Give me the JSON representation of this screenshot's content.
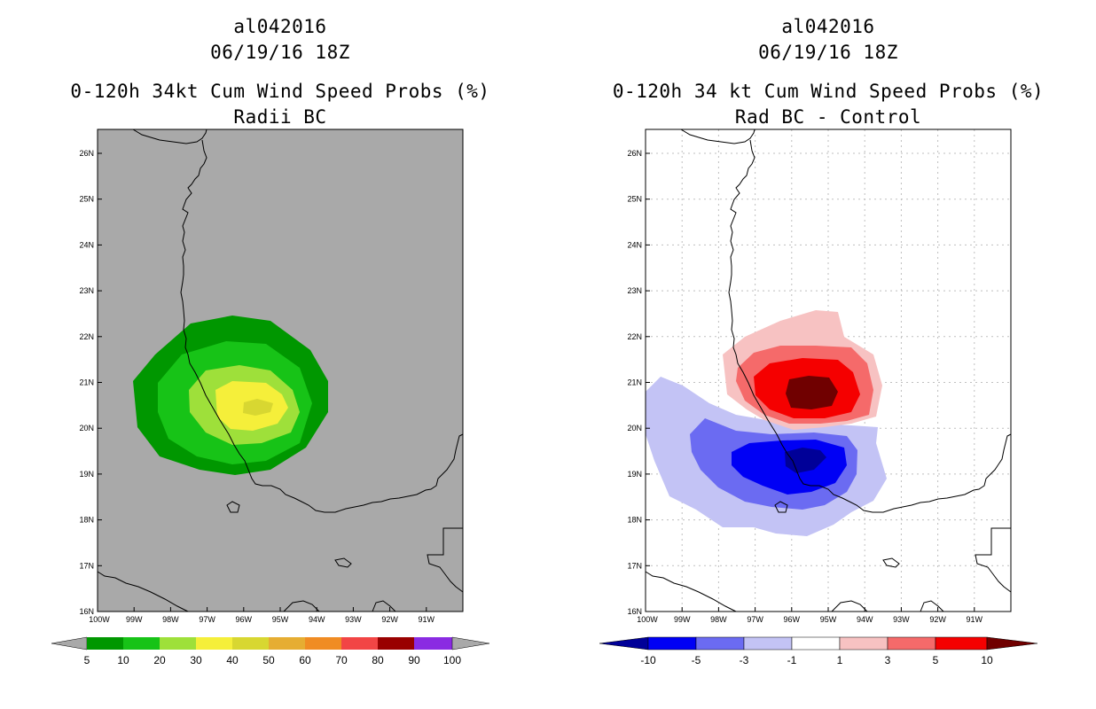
{
  "colors": {
    "land_gray": "#a9a9a9",
    "grid_gray": "#bfbfbf",
    "g1": "#009700",
    "g2": "#17c317",
    "g3": "#9ee03a",
    "y1": "#f5ef3a",
    "y2": "#d8d731",
    "o1": "#e6ad32",
    "o2": "#f08c23",
    "r1": "#f24545",
    "r2": "#990000",
    "p1": "#8a2be2",
    "b3": "#000098",
    "b2": "#0000f5",
    "b1": "#6b6bf2",
    "b0": "#c3c3f5",
    "pk0": "#f7c2c2",
    "pk1": "#f56a6a",
    "pk2": "#f50000",
    "pk3": "#700000"
  },
  "left_panel": {
    "title_line1": "al042016",
    "title_line2": "06/19/16 18Z",
    "title_line3": "0-120h 34kt Cum Wind Speed Probs (%)",
    "title_line4": "Radii BC",
    "colorbar_labels": [
      "5",
      "10",
      "20",
      "30",
      "40",
      "50",
      "60",
      "70",
      "80",
      "90",
      "100"
    ]
  },
  "right_panel": {
    "title_line1": "al042016",
    "title_line2": "06/19/16 18Z",
    "title_line3": "0-120h 34 kt Cum Wind Speed Probs (%)",
    "title_line4": "Rad BC - Control",
    "colorbar_labels": [
      "-10",
      "-5",
      "-3",
      "-1",
      "1",
      "3",
      "5",
      "10"
    ]
  },
  "axes": {
    "lon_ticks": [
      "100W",
      "99W",
      "98W",
      "97W",
      "96W",
      "95W",
      "94W",
      "93W",
      "92W",
      "91W"
    ],
    "lat_ticks": [
      "16N",
      "17N",
      "18N",
      "19N",
      "20N",
      "21N",
      "22N",
      "23N",
      "24N",
      "25N",
      "26N"
    ]
  }
}
